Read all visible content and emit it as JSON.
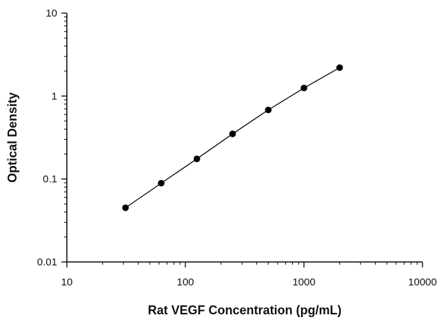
{
  "chart_data": {
    "type": "scatter",
    "title": "",
    "xlabel": "Rat VEGF Concentration (pg/mL)",
    "ylabel": "Optical Density",
    "x_scale": "log",
    "y_scale": "log",
    "xlim": [
      10,
      10000
    ],
    "ylim": [
      0.01,
      10
    ],
    "x_ticks": [
      10,
      100,
      1000,
      10000
    ],
    "x_tick_labels": [
      "10",
      "100",
      "1000",
      "10000"
    ],
    "y_ticks": [
      0.01,
      0.1,
      1,
      10
    ],
    "y_tick_labels": [
      "0.01",
      "0.1",
      "1",
      "10"
    ],
    "grid": false,
    "legend": "none",
    "series": [
      {
        "x": [
          31.25,
          62.5,
          125,
          250,
          500,
          1000,
          2000
        ],
        "y": [
          0.045,
          0.089,
          0.175,
          0.35,
          0.68,
          1.25,
          2.2
        ],
        "marker": "circle",
        "fit_line": true
      }
    ]
  },
  "colors": {
    "marker": "#000000",
    "line": "#000000",
    "axis": "#000000"
  }
}
